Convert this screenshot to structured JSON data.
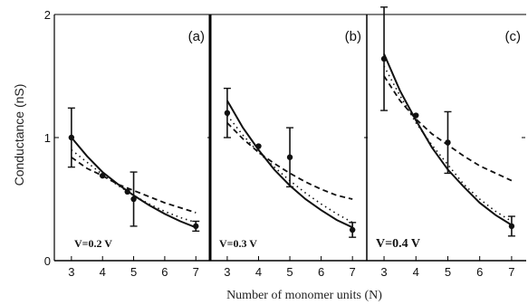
{
  "chart_data": {
    "type": "scatter",
    "ylabel": "Conductance (nS)",
    "xlabel": "Number of monomer units (N)",
    "y_ticks": [
      "0",
      "1",
      "2"
    ],
    "ylim": [
      0,
      2
    ],
    "panels": [
      {
        "letter": "(a)",
        "voltage": "V=0.2 V",
        "x_ticks": [
          "3",
          "4",
          "5",
          "6",
          "7"
        ],
        "xlim": [
          2.8,
          7.4
        ],
        "points": [
          {
            "x": 3,
            "y": 1.0,
            "err": 0.24
          },
          {
            "x": 4,
            "y": 0.69,
            "err": 0.0
          },
          {
            "x": 4.8,
            "y": 0.56,
            "err": 0.0
          },
          {
            "x": 5,
            "y": 0.5,
            "err": 0.22
          },
          {
            "x": 7,
            "y": 0.28,
            "err": 0.04
          }
        ],
        "solid": [
          [
            3,
            1.0
          ],
          [
            3.5,
            0.85
          ],
          [
            4,
            0.72
          ],
          [
            4.5,
            0.62
          ],
          [
            5,
            0.53
          ],
          [
            5.5,
            0.45
          ],
          [
            6,
            0.38
          ],
          [
            6.5,
            0.32
          ],
          [
            7,
            0.27
          ]
        ],
        "dashed": [
          [
            3,
            0.84
          ],
          [
            3.5,
            0.75
          ],
          [
            4,
            0.69
          ],
          [
            4.5,
            0.62
          ],
          [
            5,
            0.57
          ],
          [
            5.5,
            0.52
          ],
          [
            6,
            0.47
          ],
          [
            6.5,
            0.43
          ],
          [
            7,
            0.39
          ]
        ],
        "dotted": [
          [
            3,
            0.9
          ],
          [
            3.5,
            0.8
          ],
          [
            4,
            0.7
          ],
          [
            4.5,
            0.61
          ],
          [
            5,
            0.53
          ],
          [
            5.5,
            0.46
          ],
          [
            6,
            0.4
          ],
          [
            6.5,
            0.35
          ],
          [
            7,
            0.31
          ]
        ]
      },
      {
        "letter": "(b)",
        "voltage": "V=0.3 V",
        "x_ticks": [
          "3",
          "4",
          "5",
          "6",
          "7"
        ],
        "xlim": [
          2.8,
          7.4
        ],
        "points": [
          {
            "x": 3,
            "y": 1.2,
            "err": 0.2
          },
          {
            "x": 4,
            "y": 0.93,
            "err": 0.0
          },
          {
            "x": 5,
            "y": 0.84,
            "err": 0.24
          },
          {
            "x": 7,
            "y": 0.25,
            "err": 0.06
          }
        ],
        "solid": [
          [
            3,
            1.3
          ],
          [
            3.5,
            1.08
          ],
          [
            4,
            0.9
          ],
          [
            4.5,
            0.74
          ],
          [
            5,
            0.61
          ],
          [
            5.5,
            0.5
          ],
          [
            6,
            0.41
          ],
          [
            6.5,
            0.33
          ],
          [
            7,
            0.27
          ]
        ],
        "dashed": [
          [
            3,
            1.12
          ],
          [
            3.5,
            0.99
          ],
          [
            4,
            0.88
          ],
          [
            4.5,
            0.79
          ],
          [
            5,
            0.71
          ],
          [
            5.5,
            0.64
          ],
          [
            6,
            0.58
          ],
          [
            6.5,
            0.53
          ],
          [
            7,
            0.5
          ]
        ],
        "dotted": [
          [
            3,
            1.18
          ],
          [
            3.5,
            1.02
          ],
          [
            4,
            0.88
          ],
          [
            4.5,
            0.76
          ],
          [
            5,
            0.65
          ],
          [
            5.5,
            0.55
          ],
          [
            6,
            0.46
          ],
          [
            6.5,
            0.38
          ],
          [
            7,
            0.31
          ]
        ]
      },
      {
        "letter": "(c)",
        "voltage": "V=0.4 V",
        "x_ticks": [
          "3",
          "4",
          "5",
          "6",
          "7"
        ],
        "xlim": [
          2.8,
          7.4
        ],
        "points": [
          {
            "x": 3,
            "y": 1.64,
            "err": 0.42
          },
          {
            "x": 4,
            "y": 1.18,
            "err": 0.0
          },
          {
            "x": 5,
            "y": 0.96,
            "err": 0.25
          },
          {
            "x": 7,
            "y": 0.28,
            "err": 0.08
          }
        ],
        "solid": [
          [
            3,
            1.68
          ],
          [
            3.5,
            1.38
          ],
          [
            4,
            1.14
          ],
          [
            4.5,
            0.92
          ],
          [
            5,
            0.74
          ],
          [
            5.5,
            0.6
          ],
          [
            6,
            0.47
          ],
          [
            6.5,
            0.37
          ],
          [
            7,
            0.29
          ]
        ],
        "dashed": [
          [
            3,
            1.5
          ],
          [
            3.5,
            1.3
          ],
          [
            4,
            1.15
          ],
          [
            4.5,
            1.03
          ],
          [
            5,
            0.94
          ],
          [
            5.5,
            0.85
          ],
          [
            6,
            0.77
          ],
          [
            6.5,
            0.71
          ],
          [
            7,
            0.65
          ]
        ],
        "dotted": [
          [
            3,
            1.58
          ],
          [
            3.5,
            1.34
          ],
          [
            4,
            1.12
          ],
          [
            4.5,
            0.94
          ],
          [
            5,
            0.78
          ],
          [
            5.5,
            0.62
          ],
          [
            6,
            0.5
          ],
          [
            6.5,
            0.4
          ],
          [
            7,
            0.32
          ]
        ]
      }
    ]
  }
}
